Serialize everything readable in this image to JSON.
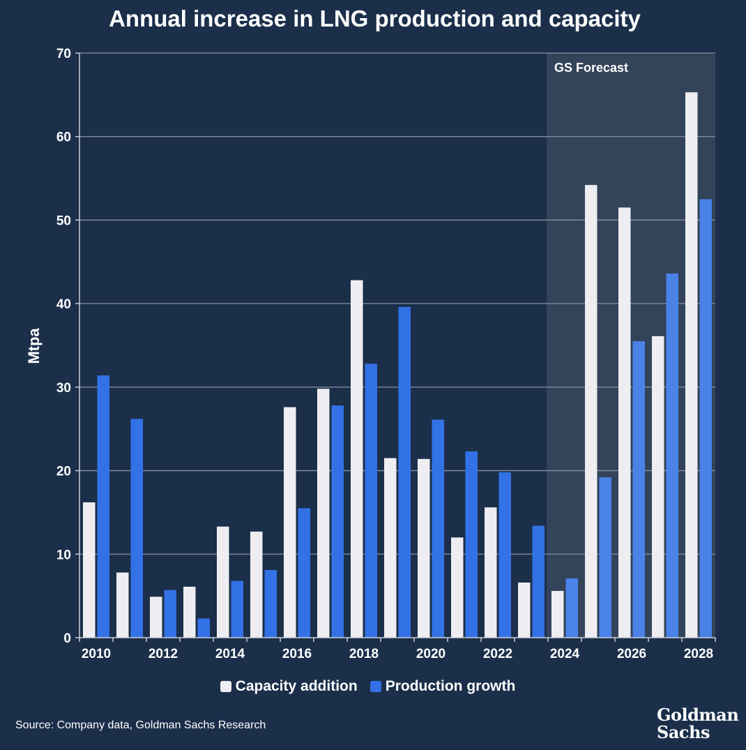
{
  "title": "Annual increase in LNG production and capacity",
  "source": "Source: Company data, Goldman Sachs Research",
  "logo": [
    "Goldman",
    "Sachs"
  ],
  "colors": {
    "background": "#1b2f4a",
    "capacity": "#eeeef2",
    "production": "#3372e6",
    "production_forecast": "#4a82e8",
    "forecast_shade": "#33435a",
    "grid": "#8793a3"
  },
  "chart_data": {
    "type": "bar",
    "title": "Annual increase in LNG production and capacity",
    "ylabel": "Mtpa",
    "xlabel": "",
    "ylim": [
      0,
      70
    ],
    "yticks": [
      0,
      10,
      20,
      30,
      40,
      50,
      60,
      70
    ],
    "grid": true,
    "legend_position": "bottom",
    "categories": [
      "2010",
      "2011",
      "2012",
      "2013",
      "2014",
      "2015",
      "2016",
      "2017",
      "2018",
      "2019",
      "2020",
      "2021",
      "2022",
      "2023",
      "2024",
      "2025",
      "2026",
      "2027",
      "2028"
    ],
    "xtick_labels": [
      "2010",
      "2012",
      "2014",
      "2016",
      "2018",
      "2020",
      "2022",
      "2024",
      "2026",
      "2028"
    ],
    "series": [
      {
        "name": "Capacity addition",
        "values": [
          16.2,
          7.8,
          4.9,
          6.1,
          13.3,
          12.7,
          27.6,
          29.8,
          42.8,
          21.5,
          21.4,
          12.0,
          15.6,
          6.6,
          5.6,
          54.2,
          51.5,
          36.1,
          65.3
        ]
      },
      {
        "name": "Production growth",
        "values": [
          31.4,
          26.2,
          5.7,
          2.3,
          6.8,
          8.1,
          15.5,
          27.8,
          32.8,
          39.6,
          26.1,
          22.3,
          19.8,
          13.4,
          7.1,
          19.2,
          35.5,
          43.6,
          52.5
        ]
      }
    ],
    "forecast": {
      "label": "GS Forecast",
      "start": "2024",
      "end": "2028"
    }
  }
}
